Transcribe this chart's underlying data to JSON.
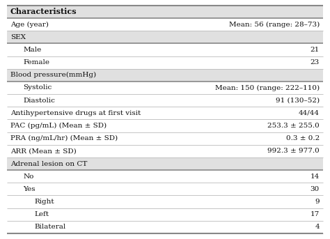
{
  "title_row": "Characteristics",
  "rows": [
    {
      "label": "Age (year)",
      "value": "Mean: 56 (range: 28–73)",
      "indent": 0,
      "header": false
    },
    {
      "label": "SEX",
      "value": "",
      "indent": 0,
      "header": true
    },
    {
      "label": "Male",
      "value": "21",
      "indent": 1,
      "header": false
    },
    {
      "label": "Female",
      "value": "23",
      "indent": 1,
      "header": false
    },
    {
      "label": "Blood pressure(mmHg)",
      "value": "",
      "indent": 0,
      "header": true
    },
    {
      "label": "Systolic",
      "value": "Mean: 150 (range: 222–110)",
      "indent": 1,
      "header": false
    },
    {
      "label": "Diastolic",
      "value": "91 (130–52)",
      "indent": 1,
      "header": false
    },
    {
      "label": "Antihypertensive drugs at first visit",
      "value": "44/44",
      "indent": 0,
      "header": false
    },
    {
      "label": "PAC (pg/mL) (Mean ± SD)",
      "value": "253.3 ± 255.0",
      "indent": 0,
      "header": false
    },
    {
      "label": "PRA (ng/mL/hr) (Mean ± SD)",
      "value": "0.3 ± 0.2",
      "indent": 0,
      "header": false
    },
    {
      "label": "ARR (Mean ± SD)",
      "value": "992.3 ± 977.0",
      "indent": 0,
      "header": false
    },
    {
      "label": "Adrenal lesion on CT",
      "value": "",
      "indent": 0,
      "header": true
    },
    {
      "label": "No",
      "value": "14",
      "indent": 1,
      "header": false
    },
    {
      "label": "Yes",
      "value": "30",
      "indent": 1,
      "header": false
    },
    {
      "label": "Right",
      "value": "9",
      "indent": 2,
      "header": false
    },
    {
      "label": "Left",
      "value": "17",
      "indent": 2,
      "header": false
    },
    {
      "label": "Bilateral",
      "value": "4",
      "indent": 2,
      "header": false
    }
  ],
  "header_bg": "#e0e0e0",
  "white_bg": "#ffffff",
  "line_color_heavy": "#888888",
  "line_color_light": "#bbbbbb",
  "text_color": "#111111",
  "font_size": 7.5,
  "title_font_size": 8.0,
  "indent_sizes": [
    0.0,
    0.04,
    0.075
  ]
}
